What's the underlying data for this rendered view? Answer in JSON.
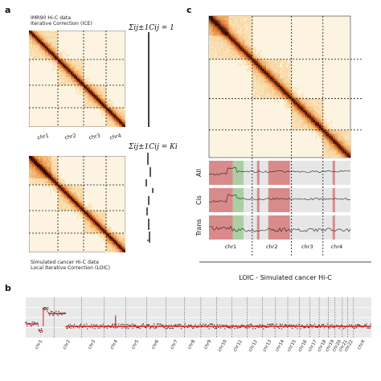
{
  "panel_a": {
    "letter": "a",
    "top_title": [
      "IMR90 Hi-C data",
      "Iterative Correction (ICE)"
    ],
    "bottom_title": [
      "Simulated cancer Hi-C data",
      "Local Iterative Correction (LOIC)"
    ],
    "eq_top": "Σij±1Cij = 1",
    "eq_bottom": "Σij±1Cij = Ki",
    "chroms": [
      "chr1",
      "chr2",
      "chr3",
      "chr4"
    ]
  },
  "panel_b": {
    "letter": "b",
    "chroms": [
      "chr1",
      "chr2",
      "chr3",
      "chr4",
      "chr5",
      "chr6",
      "chr7",
      "chr8",
      "chr9",
      "chr10",
      "chr11",
      "chr12",
      "chr13",
      "chr14",
      "chr15",
      "chr16",
      "chr17",
      "chr18",
      "chr19",
      "chr20",
      "chr21",
      "chr22",
      "chrX"
    ]
  },
  "panel_c": {
    "letter": "c",
    "track_labels": [
      "All",
      "Cis",
      "Trans"
    ],
    "chroms": [
      "chr1",
      "chr2",
      "chr3",
      "chr4"
    ],
    "footer": "LOIC - Simulated cancer Hi-C"
  },
  "colors": {
    "heat_light": "#fdf1dc",
    "heat_mid": "#f0a050",
    "heat_dark": "#2a1204",
    "track_bg": "#e6e6e6",
    "gain_red": "#d98a8a",
    "loss_green": "#a9cfa3",
    "red_line": "#e41a1c"
  }
}
